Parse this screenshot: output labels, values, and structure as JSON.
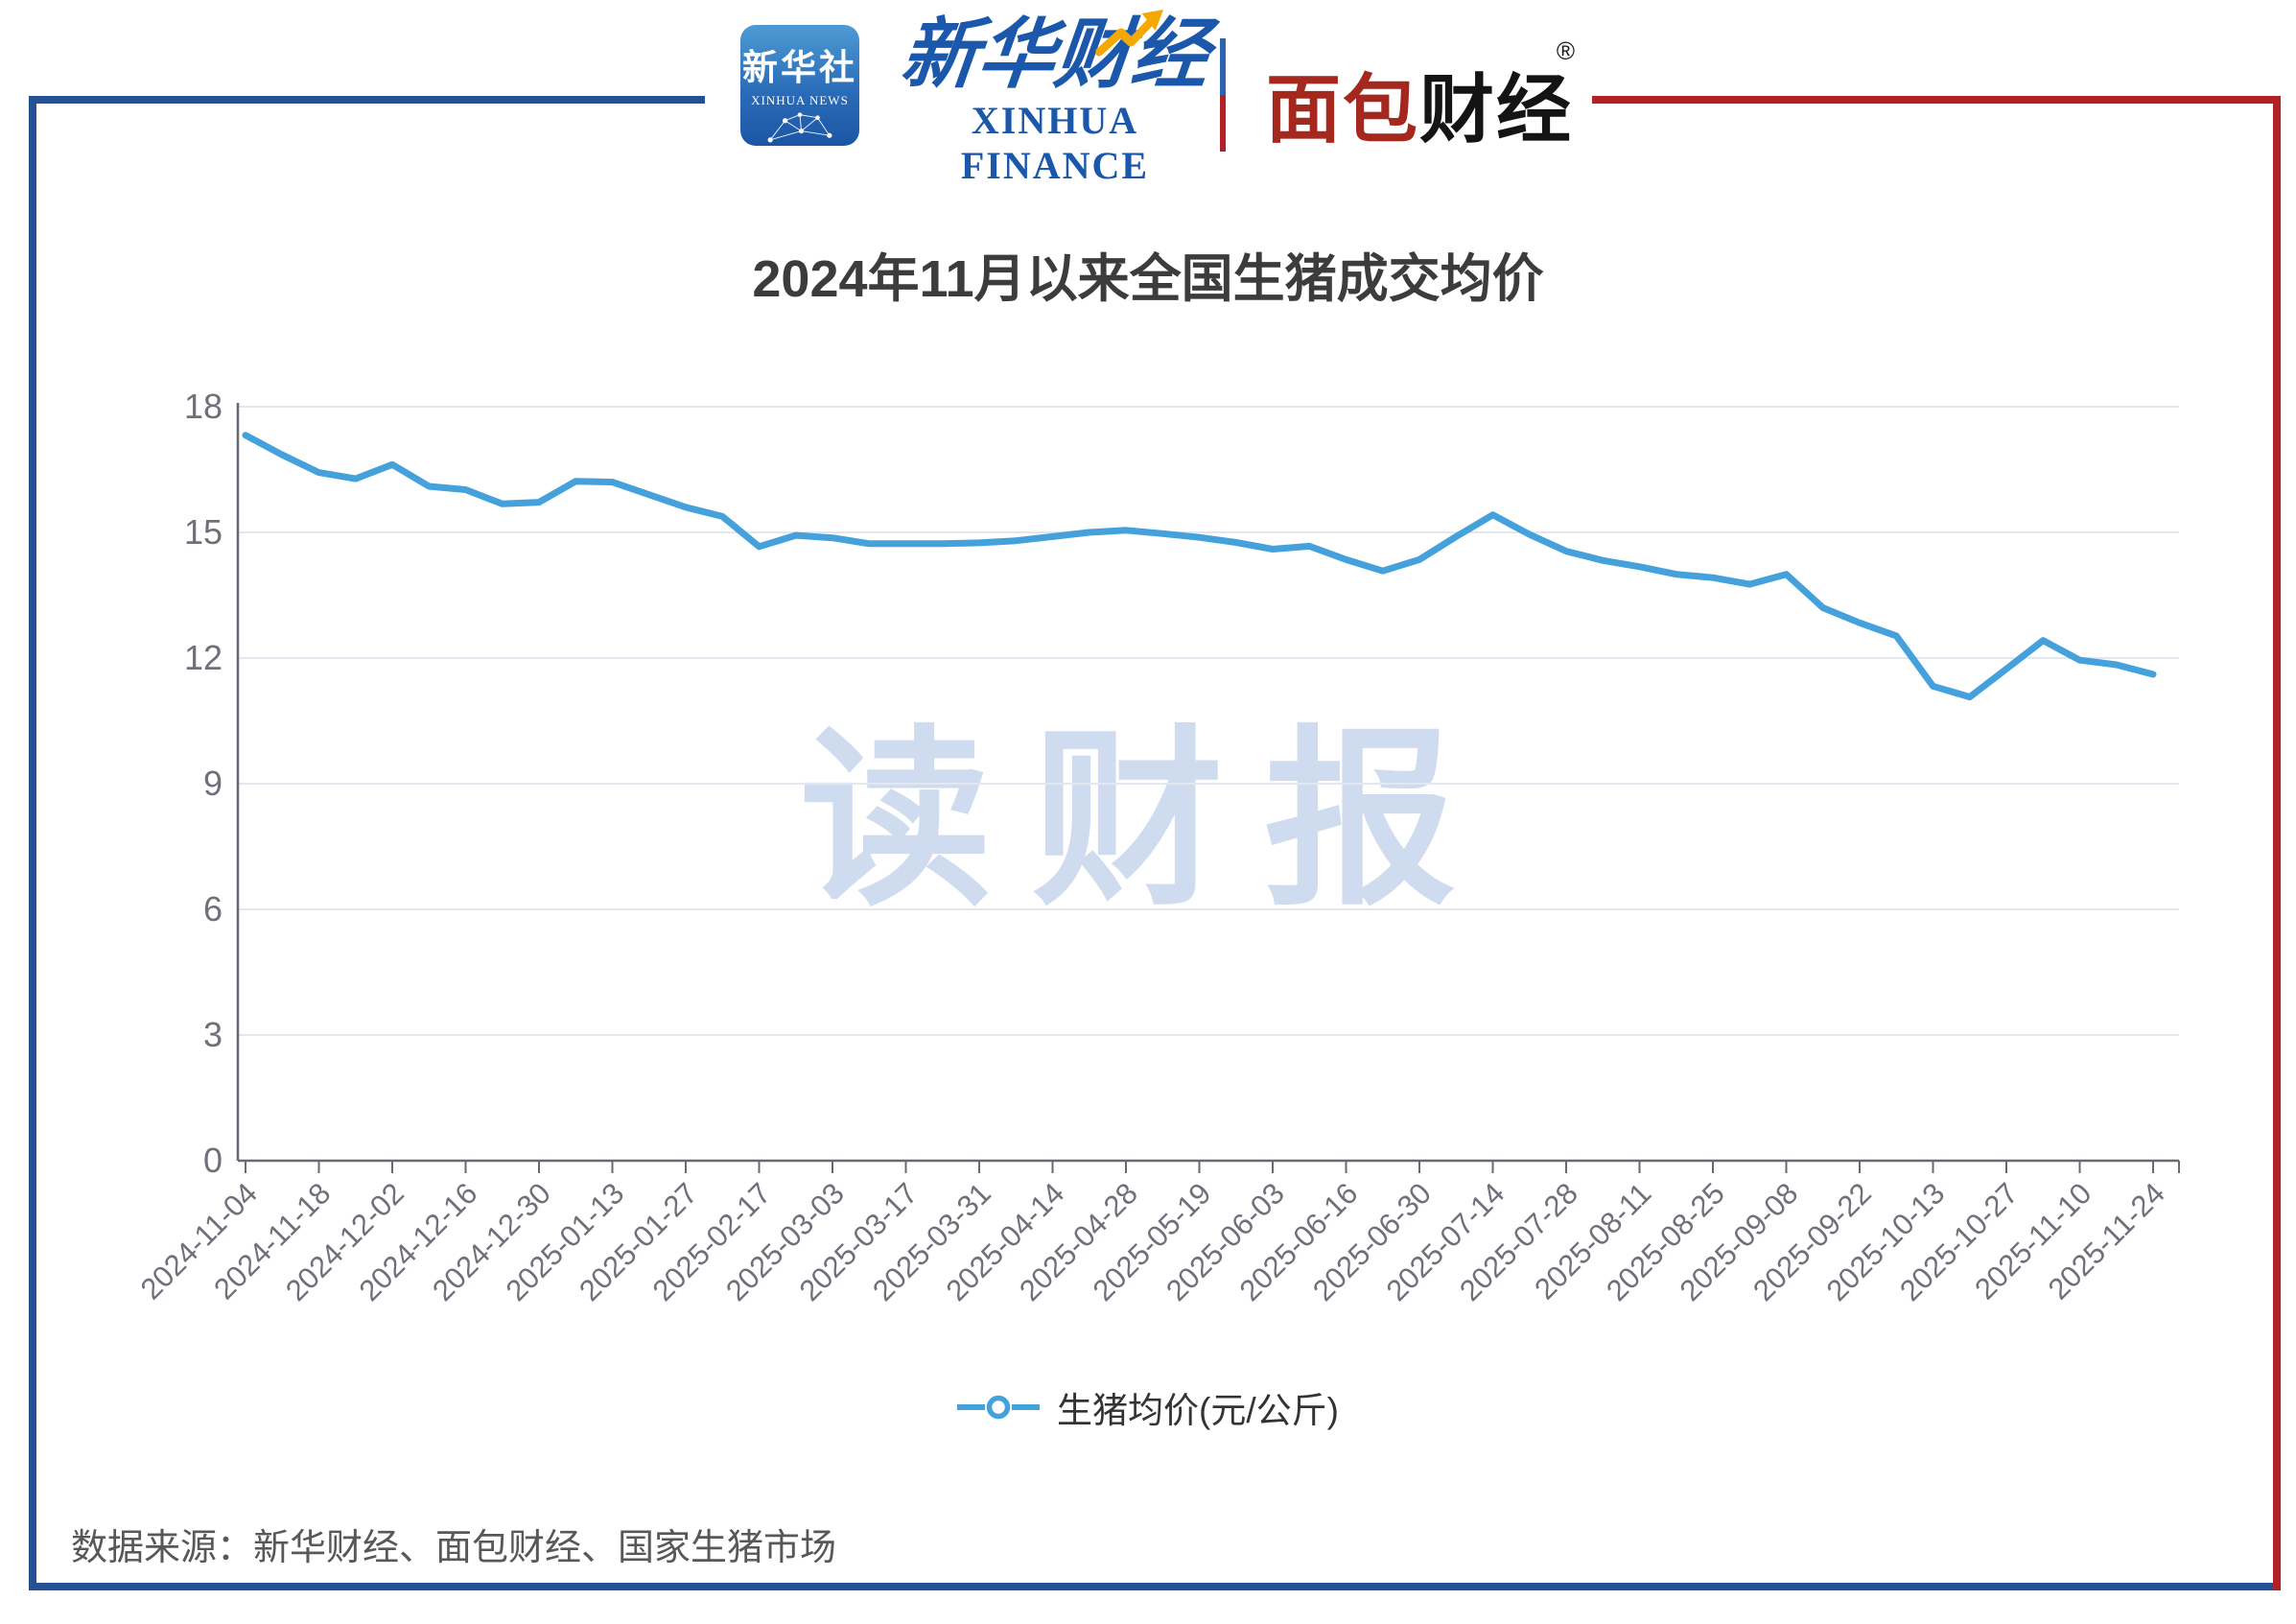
{
  "header": {
    "xinhua_icon": {
      "line1": "新华社",
      "line2": "XINHUA NEWS"
    },
    "xinhua_finance": {
      "calligraphy": "新华财经",
      "subtext": "XINHUA FINANCE"
    },
    "bread_finance": {
      "part_red": "面包",
      "part_black": "财经",
      "reg_mark": "®"
    }
  },
  "title": "2024年11月以来全国生猪成交均价",
  "watermark": "读财报",
  "legend": {
    "label": "生猪均价(元/公斤)"
  },
  "source": "数据来源：新华财经、面包财经、国家生猪市场",
  "colors": {
    "line": "#45a1db",
    "axis": "#666a73",
    "grid": "#e2e7f0",
    "tick_label": "#6e7179",
    "title_text": "#3c3c3c",
    "frame_blue": "#235193",
    "frame_red": "#b22126",
    "logo_red": "#a5281f",
    "logo_black": "#141414",
    "logo_blue": "#1b58ab",
    "logo_yellow": "#f5a800",
    "watermark": "#cfdbee",
    "source_text": "#58585a",
    "legend_text": "#333333"
  },
  "chart_data": {
    "type": "line",
    "title": "2024年11月以来全国生猪成交均价",
    "series": [
      {
        "name": "生猪均价(元/公斤)",
        "values": [
          17.32,
          16.85,
          16.43,
          16.28,
          16.62,
          16.1,
          16.02,
          15.68,
          15.72,
          16.22,
          16.2,
          15.9,
          15.6,
          15.38,
          14.66,
          14.93,
          14.87,
          14.73,
          14.73,
          14.73,
          14.75,
          14.8,
          14.9,
          15.0,
          15.05,
          14.97,
          14.88,
          14.76,
          14.6,
          14.67,
          14.35,
          14.08,
          14.35,
          14.9,
          15.42,
          14.95,
          14.55,
          14.33,
          14.18,
          14.0,
          13.92,
          13.76,
          14.0,
          13.2,
          12.84,
          12.53,
          11.33,
          11.07,
          11.74,
          12.42,
          11.95,
          11.84,
          11.61
        ]
      }
    ],
    "x_tick_labels": [
      "2024-11-04",
      "2024-11-18",
      "2024-12-02",
      "2024-12-16",
      "2024-12-30",
      "2025-01-13",
      "2025-01-27",
      "2025-02-17",
      "2025-03-03",
      "2025-03-17",
      "2025-03-31",
      "2025-04-14",
      "2025-04-28",
      "2025-05-19",
      "2025-06-03",
      "2025-06-16",
      "2025-06-30",
      "2025-07-14",
      "2025-07-28",
      "2025-08-11",
      "2025-08-25",
      "2025-09-08",
      "2025-09-22",
      "2025-10-13",
      "2025-10-27",
      "2025-11-10",
      "2025-11-24"
    ],
    "x_label_every": 2,
    "xlabel": "",
    "ylabel": "",
    "unit": "元/公斤",
    "ylim": [
      0,
      18
    ],
    "yticks": [
      0,
      3,
      6,
      9,
      12,
      15,
      18
    ],
    "grid": true,
    "legend_position": "bottom"
  }
}
